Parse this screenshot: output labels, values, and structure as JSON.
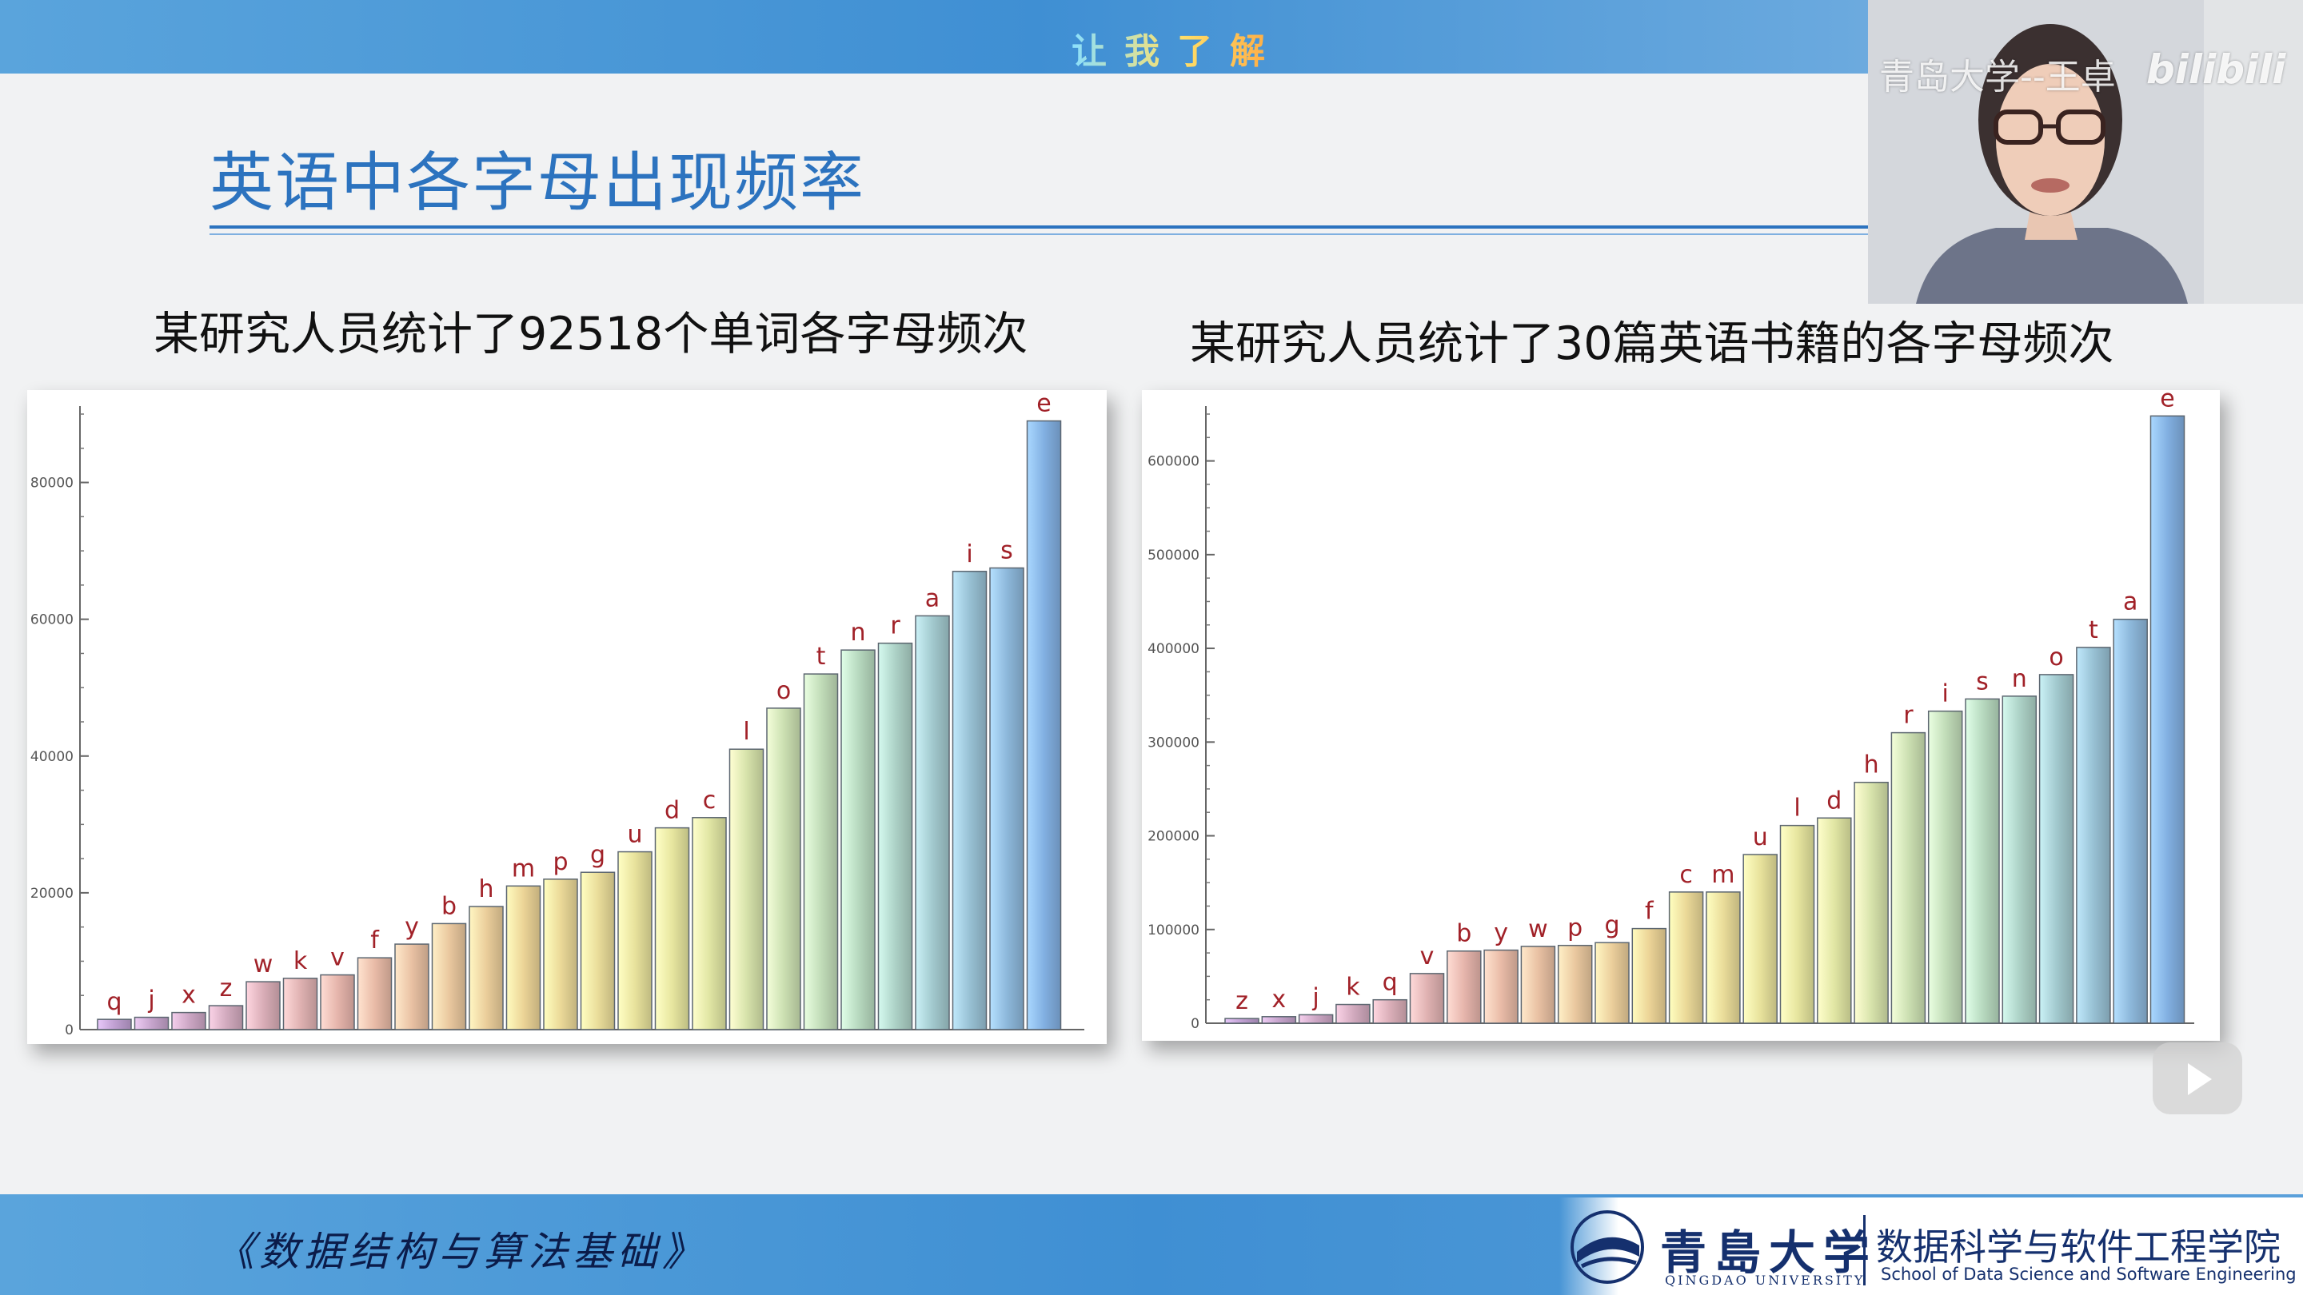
{
  "header": {
    "caption": "让我了解"
  },
  "slide": {
    "title": "英语中各字母出现频率"
  },
  "video": {
    "overlay_text": "青岛大学--王卓",
    "platform_logo": "bilibili"
  },
  "footer": {
    "course_title": "《数据结构与算法基础》",
    "university_name": "青島大学",
    "university_name_en": "QINGDAO UNIVERSITY",
    "school_name": "数据科学与软件工程学院",
    "school_name_en": "School of Data Science and Software Engineering"
  },
  "chart_data": [
    {
      "type": "bar",
      "title": "某研究人员统计了92518个单词各字母频次",
      "xlabel": "",
      "ylabel": "",
      "ylim": [
        0,
        90000
      ],
      "yticks": [
        0,
        20000,
        40000,
        60000,
        80000
      ],
      "ytick_labels": [
        "0",
        "20000",
        "40000",
        "60000",
        "80000"
      ],
      "grid": false,
      "categories": [
        "q",
        "j",
        "x",
        "z",
        "w",
        "k",
        "v",
        "f",
        "y",
        "b",
        "h",
        "m",
        "p",
        "g",
        "u",
        "d",
        "c",
        "l",
        "o",
        "t",
        "n",
        "r",
        "a",
        "i",
        "s",
        "e"
      ],
      "values": [
        1500,
        1800,
        2500,
        3500,
        7000,
        7500,
        8000,
        10500,
        12500,
        15500,
        18000,
        21000,
        22000,
        23000,
        26000,
        29500,
        31000,
        41000,
        47000,
        52000,
        55500,
        56500,
        60500,
        67000,
        67500,
        89000
      ]
    },
    {
      "type": "bar",
      "title": "某研究人员统计了30篇英语书籍的各字母频次",
      "xlabel": "",
      "ylabel": "",
      "ylim": [
        0,
        650000
      ],
      "yticks": [
        0,
        100000,
        200000,
        300000,
        400000,
        500000,
        600000
      ],
      "ytick_labels": [
        "0",
        "100000",
        "200000",
        "300000",
        "400000",
        "500000",
        "600000"
      ],
      "grid": false,
      "categories": [
        "z",
        "x",
        "j",
        "k",
        "q",
        "v",
        "b",
        "y",
        "w",
        "p",
        "g",
        "f",
        "c",
        "m",
        "u",
        "l",
        "d",
        "h",
        "r",
        "i",
        "s",
        "n",
        "o",
        "t",
        "a",
        "e"
      ],
      "values": [
        5000,
        7000,
        9000,
        20000,
        25000,
        53000,
        77000,
        78000,
        82000,
        83000,
        86000,
        101000,
        140000,
        140000,
        180000,
        211000,
        219000,
        257000,
        310000,
        333000,
        346000,
        349000,
        372000,
        401000,
        431000,
        648000
      ]
    }
  ]
}
